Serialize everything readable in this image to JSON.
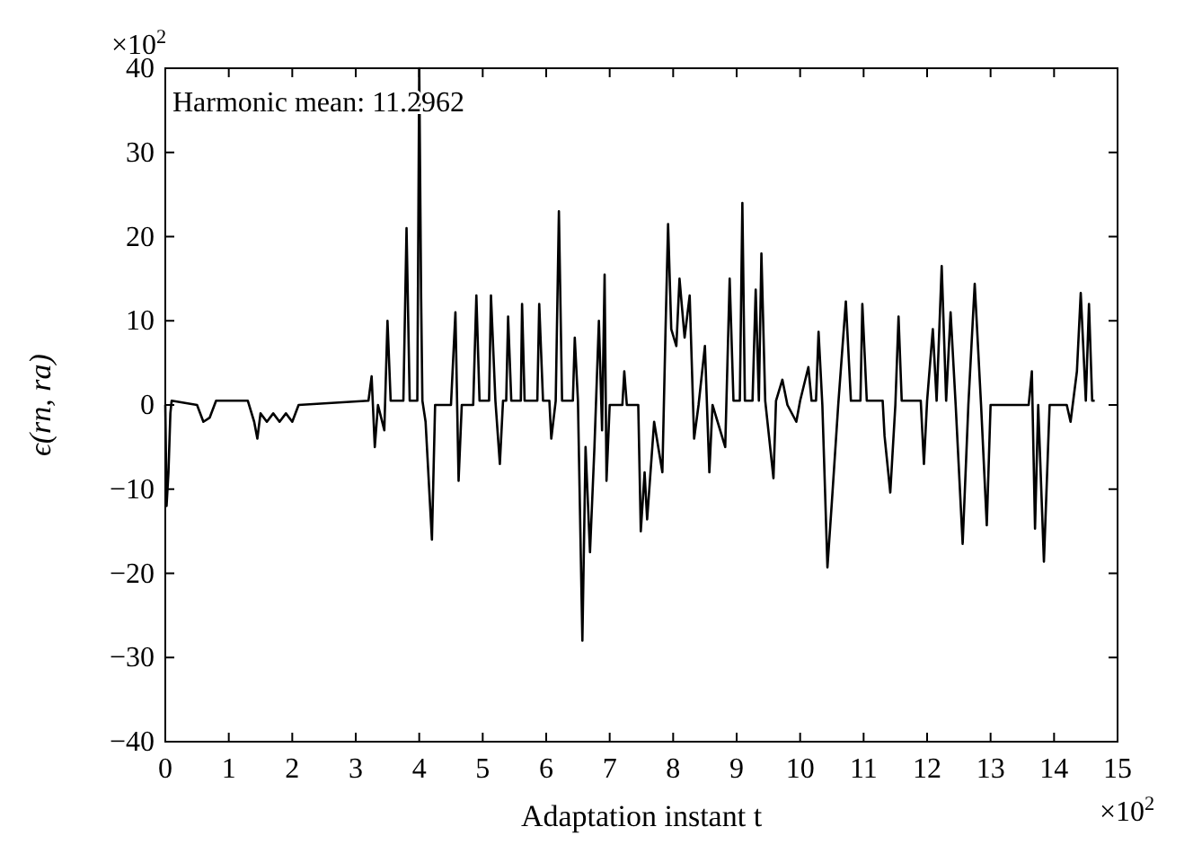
{
  "chart_data": {
    "type": "line",
    "xlabel": "Adaptation instant t",
    "ylabel": "ϵ(rn, ra)",
    "annotations": [
      "Harmonic mean: 11.2962",
      "×10$^{2}$",
      "×10$^{2}$"
    ],
    "xlim": [
      0,
      15
    ],
    "xticks": [
      0,
      1,
      2,
      3,
      4,
      5,
      6,
      7,
      8,
      9,
      10,
      11,
      12,
      13,
      14,
      15
    ],
    "ylim": [
      -40,
      40
    ],
    "yticks": [
      -40,
      -30,
      -20,
      -10,
      0,
      10,
      20,
      30,
      40
    ],
    "grid": false,
    "marker": "none",
    "line_style": "solid",
    "series": [
      {
        "color": "#000000",
        "x": [
          0,
          0.02,
          0.05,
          0.08,
          0.1,
          0.5,
          0.6,
          0.7,
          0.8,
          1.3,
          1.4,
          1.45,
          1.5,
          1.6,
          1.7,
          1.8,
          1.9,
          2.0,
          2.1,
          3.2,
          3.25,
          3.3,
          3.35,
          3.45,
          3.5,
          3.55,
          3.75,
          3.8,
          3.85,
          3.97,
          4.0,
          4.03,
          4.05,
          4.1,
          4.2,
          4.25,
          4.5,
          4.57,
          4.62,
          4.67,
          4.85,
          4.9,
          4.95,
          5.1,
          5.13,
          5.2,
          5.27,
          5.32,
          5.37,
          5.4,
          5.45,
          5.6,
          5.62,
          5.66,
          5.86,
          5.89,
          5.95,
          6.05,
          6.08,
          6.15,
          6.2,
          6.25,
          6.42,
          6.45,
          6.5,
          6.57,
          6.62,
          6.69,
          6.76,
          6.83,
          6.88,
          6.92,
          6.95,
          7.0,
          7.2,
          7.23,
          7.27,
          7.45,
          7.49,
          7.55,
          7.59,
          7.7,
          7.83,
          7.88,
          7.92,
          7.97,
          8.05,
          8.1,
          8.18,
          8.26,
          8.33,
          8.4,
          8.5,
          8.57,
          8.62,
          8.82,
          8.89,
          8.95,
          9.05,
          9.09,
          9.13,
          9.25,
          9.3,
          9.35,
          9.39,
          9.45,
          9.58,
          9.62,
          9.72,
          9.8,
          9.94,
          10.0,
          10.13,
          10.18,
          10.25,
          10.29,
          10.35,
          10.43,
          10.5,
          10.6,
          10.72,
          10.8,
          10.95,
          10.98,
          11.05,
          11.3,
          11.33,
          11.42,
          11.5,
          11.55,
          11.6,
          11.9,
          11.95,
          12.0,
          12.09,
          12.15,
          12.23,
          12.3,
          12.37,
          12.45,
          12.56,
          12.65,
          12.75,
          12.85,
          12.94,
          13.0,
          13.6,
          13.65,
          13.7,
          13.75,
          13.84,
          13.93,
          14.2,
          14.26,
          14.36,
          14.42,
          14.5,
          14.55,
          14.6,
          14.64
        ],
        "values": [
          0,
          -12,
          -8,
          -1,
          0.5,
          0,
          -2,
          -1.5,
          0.5,
          0.5,
          -2,
          -4,
          -1,
          -2,
          -1,
          -2,
          -1,
          -2,
          0,
          0.5,
          3.4,
          -5,
          0,
          -3,
          10,
          0.5,
          0.5,
          21,
          0.5,
          0.5,
          40,
          12.6,
          0.5,
          -2,
          -16,
          0,
          0,
          11,
          -9,
          0,
          0,
          13,
          0.5,
          0.5,
          13,
          0.5,
          -7,
          0.5,
          0.5,
          10.5,
          0.5,
          0.5,
          12,
          0.5,
          0.5,
          12,
          0.5,
          0.5,
          -4,
          0.5,
          23,
          0.5,
          0.5,
          8,
          0.5,
          -28,
          -5,
          -17.5,
          -5,
          10,
          -3,
          15.5,
          -9,
          0,
          0,
          4,
          0,
          0,
          -15,
          -8,
          -13.6,
          -2,
          -8,
          9,
          21.5,
          9,
          7,
          15,
          8,
          13,
          -4,
          0,
          7,
          -8,
          0,
          -5,
          15,
          0.5,
          0.5,
          24,
          0.5,
          0.5,
          13.7,
          0.5,
          18,
          0.5,
          -8.7,
          0.5,
          3,
          0,
          -2,
          0.5,
          4.5,
          0.5,
          0.5,
          8.7,
          0,
          -19.3,
          -11.5,
          0,
          12.3,
          0.5,
          0.5,
          12,
          0.5,
          0.5,
          -3.7,
          -10.4,
          0,
          10.5,
          0.5,
          0.5,
          -7,
          0.5,
          9,
          0.5,
          16.5,
          0.5,
          11,
          0,
          -16.5,
          0,
          14.4,
          0,
          -14.3,
          0,
          0,
          4,
          -14.7,
          0,
          -18.6,
          0,
          0,
          -2,
          4,
          13.3,
          0.5,
          12,
          0.5,
          0.5
        ]
      }
    ]
  }
}
